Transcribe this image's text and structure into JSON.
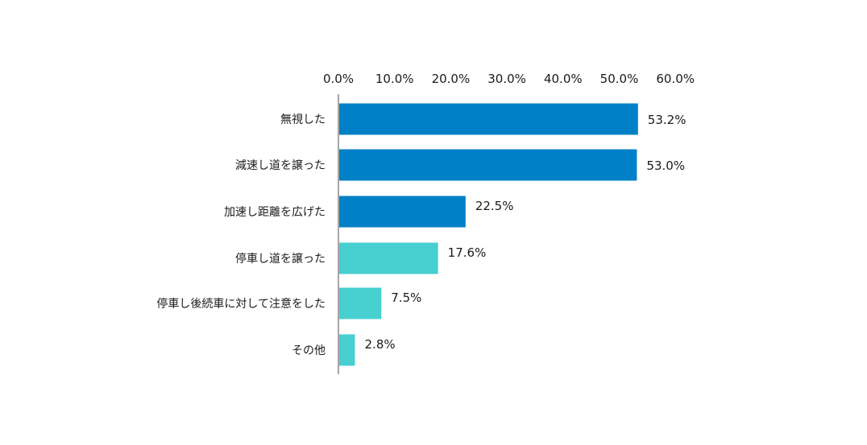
{
  "chart_data": {
    "type": "bar",
    "orientation": "horizontal",
    "title": "",
    "xlabel": "",
    "ylabel": "",
    "xlim": [
      0,
      60
    ],
    "x_ticks": [
      0,
      10,
      20,
      30,
      40,
      50,
      60
    ],
    "x_tick_labels": [
      "0.0%",
      "10.0%",
      "20.0%",
      "30.0%",
      "40.0%",
      "50.0%",
      "60.0%"
    ],
    "x_axis_position": "top",
    "grid": false,
    "categories": [
      "無視した",
      "減速し道を譲った",
      "加速し距離を広げた",
      "停車し道を譲った",
      "停車し後続車に対して注意をした",
      "その他"
    ],
    "values": [
      53.2,
      53.0,
      22.5,
      17.6,
      7.5,
      2.8
    ],
    "value_labels": [
      "53.2%",
      "53.0%",
      "22.5%",
      "17.6%",
      "7.5%",
      "2.8%"
    ],
    "bar_colors": [
      "#0080c6",
      "#0080c6",
      "#0080c6",
      "#48cfcf",
      "#48cfcf",
      "#48cfcf"
    ]
  }
}
